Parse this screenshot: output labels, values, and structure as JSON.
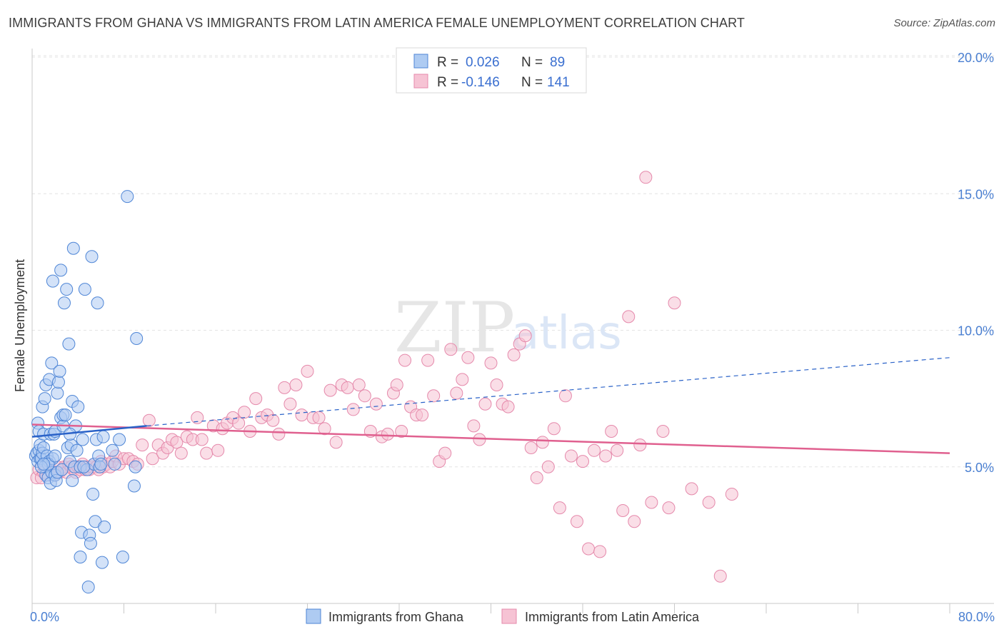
{
  "header": {
    "title": "IMMIGRANTS FROM GHANA VS IMMIGRANTS FROM LATIN AMERICA FEMALE UNEMPLOYMENT CORRELATION CHART",
    "source": "Source: ZipAtlas.com"
  },
  "watermark": {
    "zip": "ZIP",
    "atlas": "atlas"
  },
  "colors": {
    "ghana_fill": "#aecbf2",
    "ghana_stroke": "#4f86d6",
    "ghana_line": "#2a62c8",
    "latam_fill": "#f6c3d4",
    "latam_stroke": "#e589ab",
    "latam_line": "#e0608f"
  },
  "legend": {
    "ghana": {
      "r_label": "R =",
      "r_value": "0.026",
      "n_label": "N =",
      "n_value": "89"
    },
    "latam": {
      "r_label": "R =",
      "r_value": "-0.146",
      "n_label": "N =",
      "n_value": "141"
    }
  },
  "chart_data": {
    "type": "scatter",
    "title": "IMMIGRANTS FROM GHANA VS IMMIGRANTS FROM LATIN AMERICA FEMALE UNEMPLOYMENT CORRELATION CHART",
    "xlabel": "",
    "ylabel": "Female Unemployment",
    "xlim": [
      0,
      80
    ],
    "ylim": [
      0,
      20
    ],
    "x_tick_labels": [
      {
        "value": 0,
        "label": "0.0%"
      },
      {
        "value": 80,
        "label": "80.0%"
      }
    ],
    "y_tick_labels": [
      {
        "value": 5,
        "label": "5.0%"
      },
      {
        "value": 10,
        "label": "10.0%"
      },
      {
        "value": 15,
        "label": "15.0%"
      },
      {
        "value": 20,
        "label": "20.0%"
      }
    ],
    "grid": true,
    "legend_position": "top-center",
    "series": [
      {
        "name": "Immigrants from Ghana",
        "trend": {
          "x": [
            0,
            10
          ],
          "y": [
            6.1,
            6.5
          ],
          "dashed_extension": {
            "x": [
              10,
              80
            ],
            "y": [
              6.5,
              9.0
            ]
          }
        },
        "points": [
          [
            0.3,
            5.4
          ],
          [
            0.4,
            5.5
          ],
          [
            0.5,
            5.2
          ],
          [
            0.5,
            6.6
          ],
          [
            0.6,
            5.6
          ],
          [
            0.6,
            6.3
          ],
          [
            0.7,
            5.3
          ],
          [
            0.7,
            5.8
          ],
          [
            0.8,
            5.3
          ],
          [
            0.9,
            5.5
          ],
          [
            0.9,
            7.2
          ],
          [
            1.0,
            6.2
          ],
          [
            1.0,
            5.7
          ],
          [
            1.1,
            5.0
          ],
          [
            1.1,
            7.5
          ],
          [
            1.2,
            8.0
          ],
          [
            1.2,
            4.7
          ],
          [
            1.3,
            5.4
          ],
          [
            1.4,
            4.6
          ],
          [
            1.5,
            5.2
          ],
          [
            1.5,
            8.2
          ],
          [
            1.6,
            4.4
          ],
          [
            1.6,
            6.2
          ],
          [
            1.7,
            8.8
          ],
          [
            1.7,
            4.8
          ],
          [
            1.8,
            11.8
          ],
          [
            1.8,
            5.3
          ],
          [
            1.9,
            6.2
          ],
          [
            2.0,
            4.7
          ],
          [
            2.0,
            6.3
          ],
          [
            2.1,
            4.5
          ],
          [
            2.2,
            7.7
          ],
          [
            2.2,
            4.8
          ],
          [
            2.3,
            8.1
          ],
          [
            2.4,
            8.5
          ],
          [
            2.5,
            12.2
          ],
          [
            2.5,
            6.8
          ],
          [
            2.6,
            4.9
          ],
          [
            2.7,
            6.5
          ],
          [
            2.7,
            6.9
          ],
          [
            2.8,
            11.0
          ],
          [
            2.9,
            6.9
          ],
          [
            3.0,
            11.5
          ],
          [
            3.1,
            5.7
          ],
          [
            3.2,
            9.5
          ],
          [
            3.3,
            5.2
          ],
          [
            3.4,
            5.8
          ],
          [
            3.5,
            7.4
          ],
          [
            3.5,
            4.5
          ],
          [
            3.6,
            13.0
          ],
          [
            3.7,
            5.0
          ],
          [
            3.8,
            6.5
          ],
          [
            3.9,
            5.6
          ],
          [
            4.0,
            7.2
          ],
          [
            4.2,
            5.0
          ],
          [
            4.2,
            1.7
          ],
          [
            4.3,
            2.6
          ],
          [
            4.4,
            6.0
          ],
          [
            4.6,
            11.5
          ],
          [
            4.8,
            4.9
          ],
          [
            4.9,
            0.6
          ],
          [
            5.0,
            2.5
          ],
          [
            5.1,
            2.2
          ],
          [
            5.2,
            12.7
          ],
          [
            5.3,
            4.0
          ],
          [
            5.4,
            5.1
          ],
          [
            5.5,
            3.0
          ],
          [
            5.6,
            6.0
          ],
          [
            5.7,
            11.0
          ],
          [
            5.8,
            5.4
          ],
          [
            5.9,
            5.0
          ],
          [
            6.1,
            1.5
          ],
          [
            6.2,
            6.1
          ],
          [
            6.3,
            2.8
          ],
          [
            7.0,
            5.6
          ],
          [
            7.2,
            5.1
          ],
          [
            7.6,
            6.0
          ],
          [
            7.9,
            1.7
          ],
          [
            8.3,
            14.9
          ],
          [
            9.1,
            9.7
          ],
          [
            9.0,
            5.0
          ],
          [
            8.9,
            4.3
          ],
          [
            6.0,
            5.1
          ],
          [
            4.5,
            5.0
          ],
          [
            1.4,
            5.1
          ],
          [
            0.8,
            5.0
          ],
          [
            2.0,
            5.4
          ],
          [
            3.3,
            6.2
          ],
          [
            1.0,
            5.1
          ]
        ]
      },
      {
        "name": "Immigrants from Latin America",
        "trend": {
          "x": [
            0,
            80
          ],
          "y": [
            6.55,
            5.5
          ]
        },
        "points": [
          [
            0.4,
            4.6
          ],
          [
            0.6,
            4.9
          ],
          [
            0.8,
            4.6
          ],
          [
            1.0,
            4.8
          ],
          [
            1.2,
            5.0
          ],
          [
            1.4,
            4.7
          ],
          [
            1.6,
            4.9
          ],
          [
            1.8,
            4.8
          ],
          [
            2.0,
            4.7
          ],
          [
            2.2,
            5.0
          ],
          [
            2.4,
            4.8
          ],
          [
            2.6,
            4.9
          ],
          [
            2.8,
            5.0
          ],
          [
            3.0,
            4.8
          ],
          [
            3.2,
            5.1
          ],
          [
            3.4,
            5.0
          ],
          [
            3.6,
            4.9
          ],
          [
            3.8,
            4.8
          ],
          [
            4.0,
            5.0
          ],
          [
            4.2,
            4.9
          ],
          [
            4.4,
            5.1
          ],
          [
            4.6,
            4.9
          ],
          [
            4.8,
            5.0
          ],
          [
            5.0,
            4.9
          ],
          [
            5.2,
            5.0
          ],
          [
            5.4,
            5.1
          ],
          [
            5.6,
            5.0
          ],
          [
            5.8,
            4.9
          ],
          [
            6.0,
            5.2
          ],
          [
            6.2,
            5.0
          ],
          [
            6.5,
            5.1
          ],
          [
            6.8,
            5.0
          ],
          [
            7.0,
            5.2
          ],
          [
            7.3,
            5.4
          ],
          [
            7.6,
            5.1
          ],
          [
            8.0,
            5.3
          ],
          [
            8.4,
            5.3
          ],
          [
            8.8,
            5.2
          ],
          [
            9.2,
            5.1
          ],
          [
            9.6,
            5.8
          ],
          [
            10.2,
            6.7
          ],
          [
            10.5,
            5.3
          ],
          [
            11.0,
            5.8
          ],
          [
            11.4,
            5.5
          ],
          [
            11.8,
            5.7
          ],
          [
            12.2,
            6.0
          ],
          [
            12.6,
            5.9
          ],
          [
            13.0,
            5.5
          ],
          [
            13.5,
            6.1
          ],
          [
            14.0,
            6.0
          ],
          [
            14.4,
            6.8
          ],
          [
            14.8,
            6.0
          ],
          [
            15.2,
            5.5
          ],
          [
            15.8,
            6.5
          ],
          [
            16.2,
            5.6
          ],
          [
            16.6,
            6.4
          ],
          [
            17.0,
            6.6
          ],
          [
            17.5,
            6.8
          ],
          [
            18.0,
            6.6
          ],
          [
            18.5,
            7.0
          ],
          [
            19.0,
            6.3
          ],
          [
            19.5,
            7.5
          ],
          [
            20.0,
            6.8
          ],
          [
            20.5,
            6.9
          ],
          [
            21.0,
            6.7
          ],
          [
            21.5,
            6.2
          ],
          [
            22.0,
            7.9
          ],
          [
            22.5,
            7.3
          ],
          [
            23.0,
            8.0
          ],
          [
            23.5,
            6.9
          ],
          [
            24.0,
            8.5
          ],
          [
            24.5,
            6.8
          ],
          [
            25.0,
            6.8
          ],
          [
            25.5,
            6.4
          ],
          [
            26.0,
            7.8
          ],
          [
            26.5,
            5.9
          ],
          [
            27.0,
            8.0
          ],
          [
            27.5,
            7.9
          ],
          [
            28.0,
            7.1
          ],
          [
            28.5,
            8.0
          ],
          [
            29.0,
            7.6
          ],
          [
            29.5,
            6.3
          ],
          [
            30.0,
            7.3
          ],
          [
            30.5,
            6.1
          ],
          [
            31.0,
            6.2
          ],
          [
            31.5,
            7.7
          ],
          [
            31.8,
            8.0
          ],
          [
            32.2,
            6.3
          ],
          [
            32.5,
            8.9
          ],
          [
            33.0,
            7.2
          ],
          [
            33.5,
            6.9
          ],
          [
            34.0,
            6.9
          ],
          [
            34.5,
            8.9
          ],
          [
            35.0,
            7.6
          ],
          [
            35.5,
            5.2
          ],
          [
            36.0,
            5.5
          ],
          [
            36.5,
            9.3
          ],
          [
            37.0,
            7.7
          ],
          [
            37.5,
            8.2
          ],
          [
            38.0,
            9.0
          ],
          [
            38.5,
            6.5
          ],
          [
            39.0,
            6.0
          ],
          [
            39.5,
            7.3
          ],
          [
            40.0,
            8.8
          ],
          [
            40.5,
            8.0
          ],
          [
            41.0,
            7.3
          ],
          [
            41.5,
            7.2
          ],
          [
            42.0,
            9.1
          ],
          [
            42.5,
            9.5
          ],
          [
            43.0,
            9.8
          ],
          [
            43.5,
            5.7
          ],
          [
            44.0,
            4.6
          ],
          [
            44.5,
            5.9
          ],
          [
            45.0,
            5.0
          ],
          [
            45.5,
            6.4
          ],
          [
            46.0,
            3.5
          ],
          [
            46.5,
            7.6
          ],
          [
            47.0,
            5.4
          ],
          [
            47.5,
            3.0
          ],
          [
            48.0,
            5.2
          ],
          [
            48.5,
            2.0
          ],
          [
            49.0,
            5.6
          ],
          [
            49.5,
            1.9
          ],
          [
            50.0,
            5.4
          ],
          [
            50.5,
            6.3
          ],
          [
            51.0,
            5.6
          ],
          [
            51.5,
            3.4
          ],
          [
            52.0,
            10.5
          ],
          [
            52.5,
            3.0
          ],
          [
            53.0,
            5.8
          ],
          [
            53.5,
            15.6
          ],
          [
            54.0,
            3.7
          ],
          [
            55.0,
            6.3
          ],
          [
            55.5,
            3.5
          ],
          [
            56.0,
            11.0
          ],
          [
            57.5,
            4.2
          ],
          [
            59.0,
            3.7
          ],
          [
            60.0,
            1.0
          ],
          [
            61.0,
            4.0
          ]
        ]
      }
    ]
  },
  "bottom_legend": {
    "ghana_label": "Immigrants from Ghana",
    "latam_label": "Immigrants from Latin America"
  }
}
